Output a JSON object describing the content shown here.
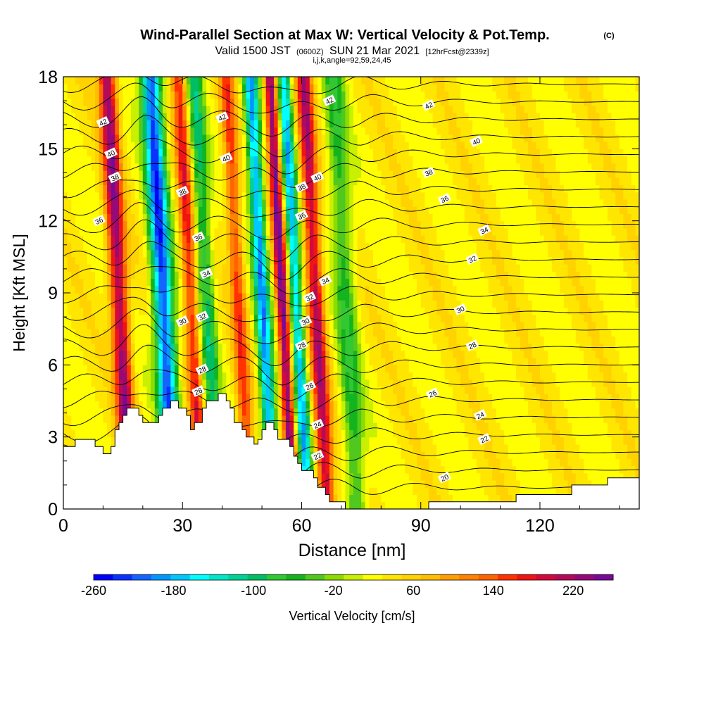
{
  "chart_data": {
    "type": "heatmap",
    "title": "Wind-Parallel Section at Max W: Vertical Velocity & Pot.Temp.",
    "title_mark": "(C)",
    "subtitle_main": "Valid 1500 JST",
    "subtitle_utc": "(0600Z)",
    "subtitle_date": "SUN 21 Mar 2021",
    "subtitle_fcst": "[12hrFcst@2339z]",
    "subtitle_line3": "i,j,k,angle=92,59,24,45",
    "xlabel": "Distance [nm]",
    "ylabel": "Height [Kft MSL]",
    "xlim": [
      0,
      145
    ],
    "ylim": [
      0,
      18
    ],
    "x_ticks": [
      "0",
      "30",
      "60",
      "90",
      "120"
    ],
    "x_tick_values": [
      0,
      30,
      60,
      90,
      120
    ],
    "y_ticks": [
      "0",
      "3",
      "6",
      "9",
      "12",
      "15",
      "18"
    ],
    "y_tick_values": [
      0,
      3,
      6,
      9,
      12,
      15,
      18
    ],
    "grid": false,
    "colorbar": {
      "label": "Vertical Velocity [cm/s]",
      "tick_labels": [
        "-260",
        "-180",
        "-100",
        "-20",
        "60",
        "140",
        "220"
      ],
      "tick_values": [
        -260,
        -180,
        -100,
        -20,
        60,
        140,
        220
      ],
      "range": [
        -260,
        260
      ],
      "colors": [
        "#0000ff",
        "#0a32ff",
        "#1464ff",
        "#0096ff",
        "#00c8ff",
        "#00ffff",
        "#00e6c8",
        "#00d296",
        "#00be64",
        "#32c832",
        "#14b41e",
        "#50c81e",
        "#8cdc00",
        "#c8f000",
        "#ffff00",
        "#ffe600",
        "#ffd200",
        "#ffbe00",
        "#ffa000",
        "#ff8200",
        "#ff6400",
        "#ff3200",
        "#f01414",
        "#d20a3c",
        "#b40a5a",
        "#960a78",
        "#780a96"
      ]
    },
    "terrain": [
      [
        0,
        2.6
      ],
      [
        3,
        2.6
      ],
      [
        3,
        2.9
      ],
      [
        8,
        2.9
      ],
      [
        8,
        2.6
      ],
      [
        10,
        2.6
      ],
      [
        10,
        2.3
      ],
      [
        12,
        2.3
      ],
      [
        12,
        2.6
      ],
      [
        13,
        2.6
      ],
      [
        13,
        3.3
      ],
      [
        14,
        3.3
      ],
      [
        14,
        3.6
      ],
      [
        15,
        3.6
      ],
      [
        15,
        3.9
      ],
      [
        16,
        3.9
      ],
      [
        16,
        4.2
      ],
      [
        19,
        4.2
      ],
      [
        19,
        3.9
      ],
      [
        20,
        3.9
      ],
      [
        20,
        3.6
      ],
      [
        24,
        3.6
      ],
      [
        24,
        3.9
      ],
      [
        25,
        3.9
      ],
      [
        25,
        4.2
      ],
      [
        27,
        4.2
      ],
      [
        27,
        4.5
      ],
      [
        29,
        4.5
      ],
      [
        29,
        4.2
      ],
      [
        31,
        4.2
      ],
      [
        31,
        3.9
      ],
      [
        32,
        3.9
      ],
      [
        32,
        3.3
      ],
      [
        33,
        3.3
      ],
      [
        33,
        3.6
      ],
      [
        35,
        3.6
      ],
      [
        35,
        4.2
      ],
      [
        36,
        4.2
      ],
      [
        36,
        4.5
      ],
      [
        39,
        4.5
      ],
      [
        39,
        4.8
      ],
      [
        41,
        4.8
      ],
      [
        41,
        4.5
      ],
      [
        42,
        4.5
      ],
      [
        42,
        4.2
      ],
      [
        43,
        4.2
      ],
      [
        43,
        3.6
      ],
      [
        45,
        3.6
      ],
      [
        45,
        3.3
      ],
      [
        46,
        3.3
      ],
      [
        46,
        3.0
      ],
      [
        48,
        3.0
      ],
      [
        48,
        2.7
      ],
      [
        49,
        2.7
      ],
      [
        49,
        2.9
      ],
      [
        50,
        2.9
      ],
      [
        50,
        3.3
      ],
      [
        51,
        3.3
      ],
      [
        51,
        3.6
      ],
      [
        53,
        3.6
      ],
      [
        53,
        3.3
      ],
      [
        54,
        3.3
      ],
      [
        54,
        2.9
      ],
      [
        57,
        2.9
      ],
      [
        57,
        2.6
      ],
      [
        58,
        2.6
      ],
      [
        58,
        2.2
      ],
      [
        59,
        2.2
      ],
      [
        59,
        1.9
      ],
      [
        60,
        1.9
      ],
      [
        60,
        1.6
      ],
      [
        63,
        1.6
      ],
      [
        63,
        1.3
      ],
      [
        64,
        1.3
      ],
      [
        64,
        0.9
      ],
      [
        66,
        0.9
      ],
      [
        66,
        0.6
      ],
      [
        67,
        0.6
      ],
      [
        67,
        0.3
      ],
      [
        71,
        0.3
      ],
      [
        71,
        0
      ],
      [
        92,
        0
      ],
      [
        92,
        0.3
      ],
      [
        114,
        0.3
      ],
      [
        114,
        0.6
      ],
      [
        128,
        0.6
      ],
      [
        128,
        1.0
      ],
      [
        137,
        1.0
      ],
      [
        137,
        1.3
      ],
      [
        145,
        1.3
      ]
    ],
    "series": [
      {
        "name": "upward motion (+)",
        "band_centers_x_at_0kft": [
          14,
          32,
          44,
          55,
          63.5
        ],
        "band_tilt_nm_per_kft": -0.55,
        "band_widths_nm": [
          2.2,
          1.8,
          1.8,
          1.5,
          2.0
        ],
        "band_peaks_cm_s": [
          200,
          140,
          120,
          220,
          180
        ]
      },
      {
        "name": "downward motion (-)",
        "band_centers_x_at_0kft": [
          25,
          36,
          50,
          58.5,
          71
        ],
        "band_tilt_nm_per_kft": -0.55,
        "band_widths_nm": [
          2.5,
          2.0,
          1.8,
          1.6,
          2.6
        ],
        "band_peaks_cm_s": [
          -260,
          -120,
          -220,
          -200,
          -90
        ]
      }
    ],
    "isentropes": {
      "label_units": "pot. temp. contour label",
      "levels": [
        20,
        22,
        24,
        26,
        28,
        30,
        32,
        34,
        36,
        38,
        40,
        42
      ],
      "labels": [
        {
          "text": "20",
          "x": 96,
          "y": 1.3
        },
        {
          "text": "22",
          "x": 106,
          "y": 2.9
        },
        {
          "text": "24",
          "x": 105,
          "y": 3.9
        },
        {
          "text": "26",
          "x": 93,
          "y": 4.8
        },
        {
          "text": "28",
          "x": 103,
          "y": 6.8
        },
        {
          "text": "30",
          "x": 100,
          "y": 8.3
        },
        {
          "text": "32",
          "x": 103,
          "y": 10.4
        },
        {
          "text": "34",
          "x": 106,
          "y": 11.6
        },
        {
          "text": "36",
          "x": 96,
          "y": 12.9
        },
        {
          "text": "38",
          "x": 92,
          "y": 14.0
        },
        {
          "text": "40",
          "x": 104,
          "y": 15.3
        },
        {
          "text": "42",
          "x": 92,
          "y": 16.8
        },
        {
          "text": "42",
          "x": 67,
          "y": 17.0
        },
        {
          "text": "40",
          "x": 64,
          "y": 13.8
        },
        {
          "text": "38",
          "x": 60,
          "y": 13.4
        },
        {
          "text": "36",
          "x": 60,
          "y": 12.2
        },
        {
          "text": "34",
          "x": 66,
          "y": 9.5
        },
        {
          "text": "32",
          "x": 62,
          "y": 8.8
        },
        {
          "text": "30",
          "x": 61,
          "y": 7.8
        },
        {
          "text": "28",
          "x": 60,
          "y": 6.8
        },
        {
          "text": "26",
          "x": 62,
          "y": 5.1
        },
        {
          "text": "24",
          "x": 64,
          "y": 3.5
        },
        {
          "text": "22",
          "x": 64,
          "y": 2.2
        },
        {
          "text": "42",
          "x": 10,
          "y": 16.1
        },
        {
          "text": "40",
          "x": 12,
          "y": 14.8
        },
        {
          "text": "38",
          "x": 13,
          "y": 13.8
        },
        {
          "text": "36",
          "x": 9,
          "y": 12.0
        },
        {
          "text": "38",
          "x": 30,
          "y": 13.2
        },
        {
          "text": "40",
          "x": 41,
          "y": 14.6
        },
        {
          "text": "42",
          "x": 40,
          "y": 16.3
        },
        {
          "text": "36",
          "x": 34,
          "y": 11.3
        },
        {
          "text": "34",
          "x": 36,
          "y": 9.8
        },
        {
          "text": "32",
          "x": 35,
          "y": 8.0
        },
        {
          "text": "30",
          "x": 30,
          "y": 7.8
        },
        {
          "text": "28",
          "x": 35,
          "y": 5.8
        },
        {
          "text": "26",
          "x": 34,
          "y": 4.9
        }
      ]
    }
  }
}
